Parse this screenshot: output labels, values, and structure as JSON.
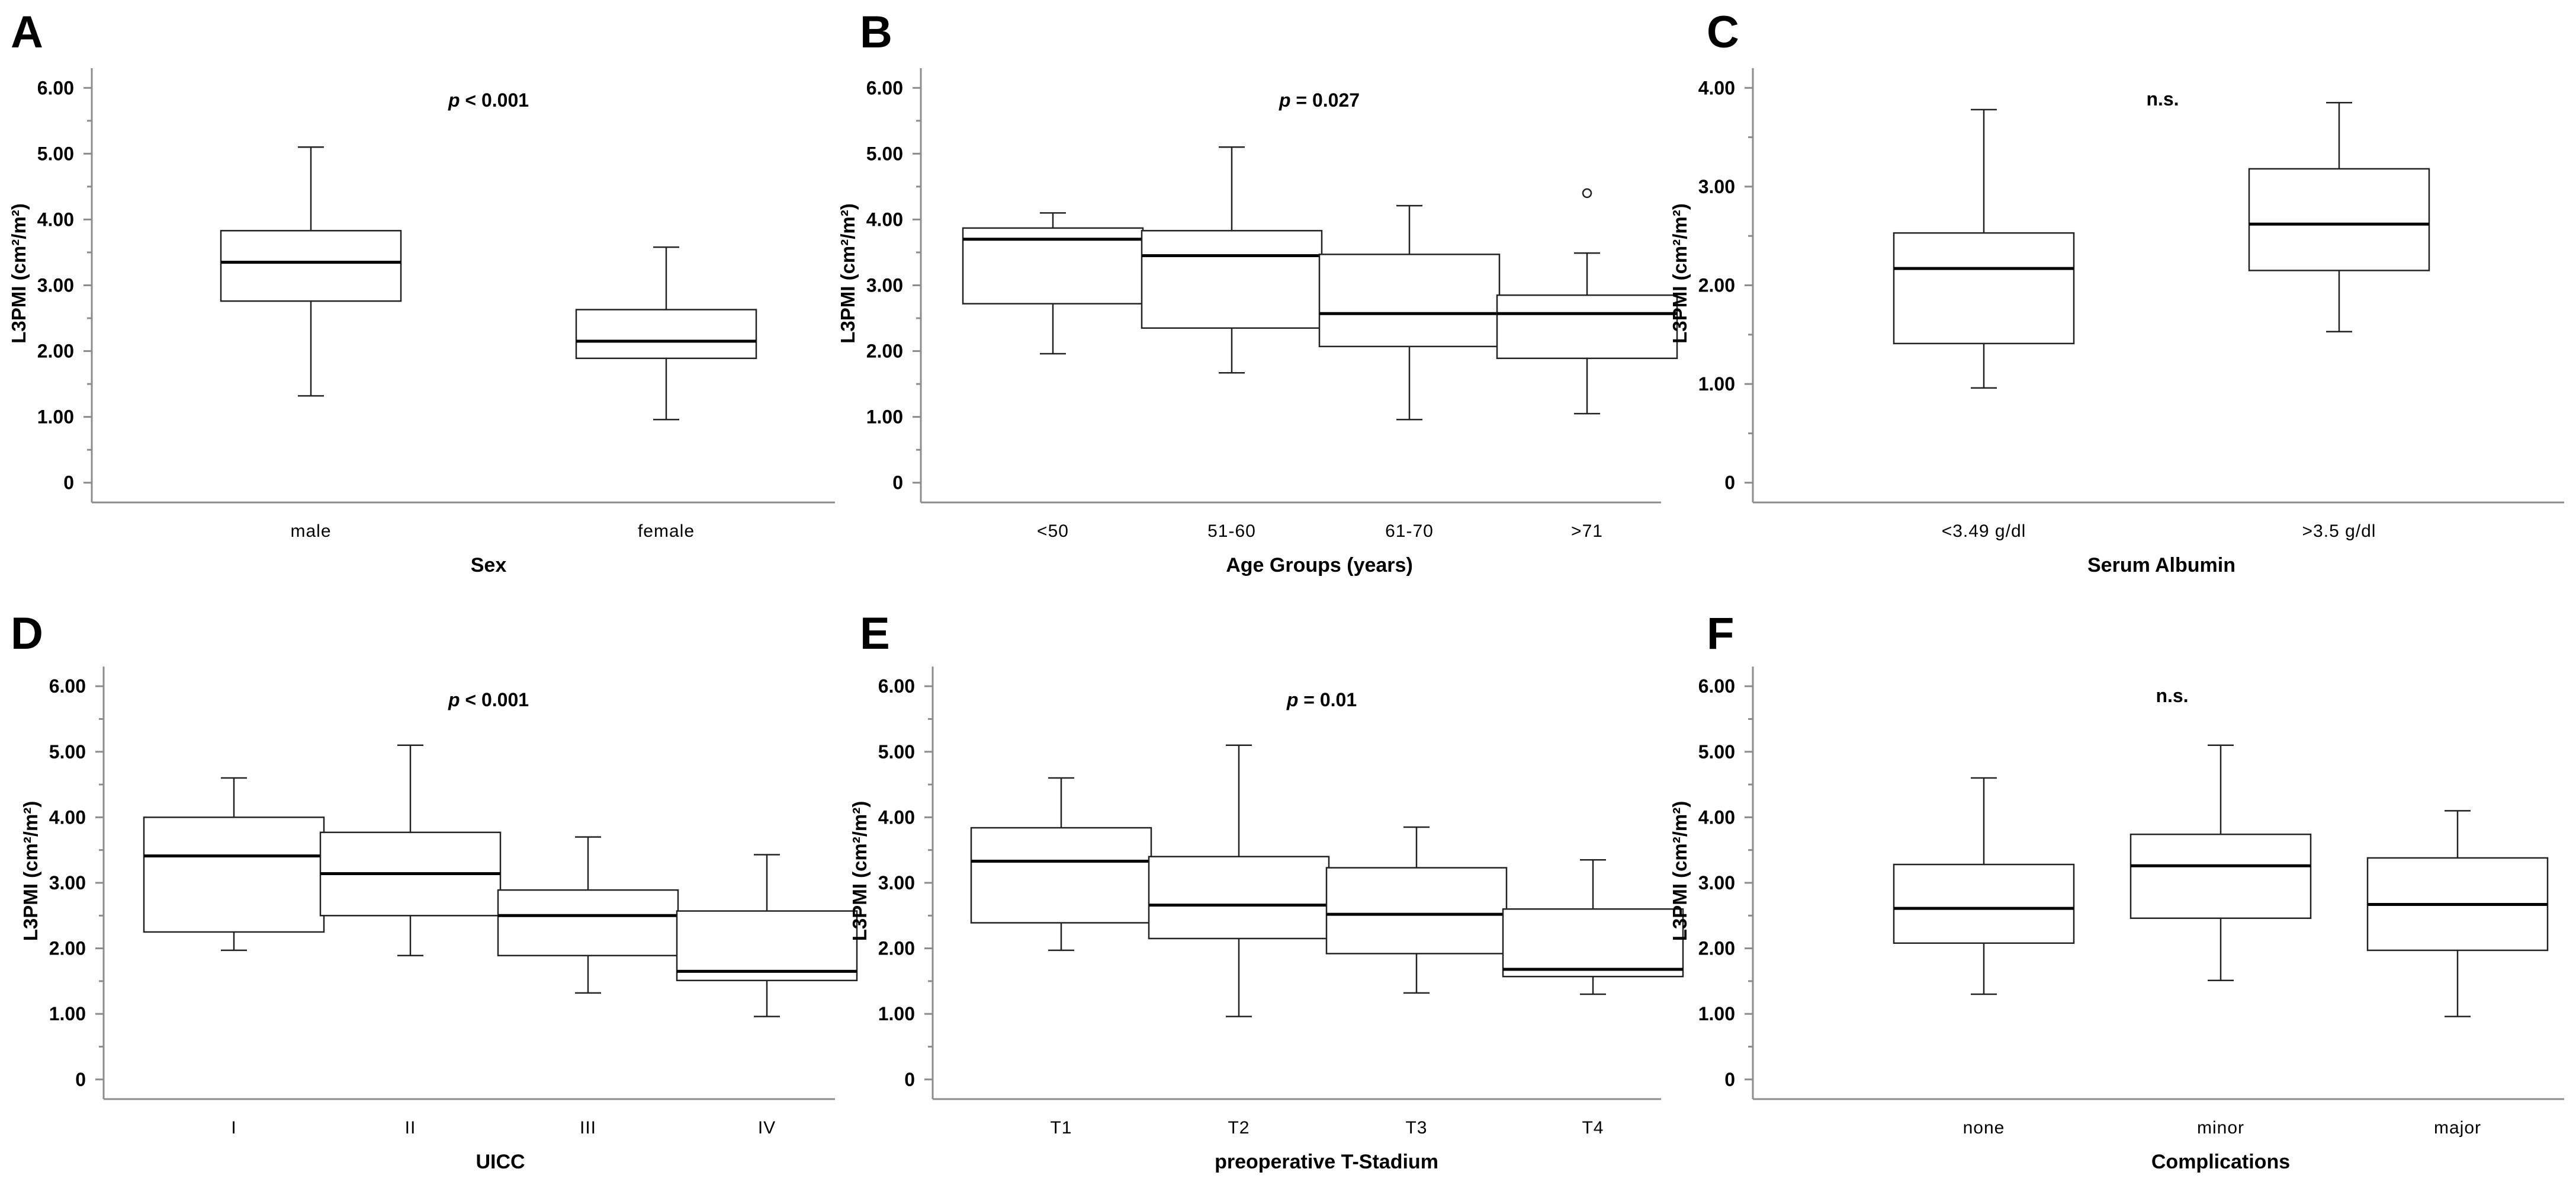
{
  "chart_data": [
    {
      "type": "box",
      "panel": "A",
      "annotation": {
        "prefix": "p",
        "rest": " < 0.001",
        "italic_prefix": true
      },
      "ylabel": "L3PMI (cm²/m²)",
      "xlabel": "Sex",
      "yticks": [
        "0",
        "1.00",
        "2.00",
        "3.00",
        "4.00",
        "5.00",
        "6.00"
      ],
      "ylim": [
        -0.3,
        6.3
      ],
      "categories": [
        "male",
        "female"
      ],
      "boxes": [
        {
          "min": 1.32,
          "q1": 2.76,
          "median": 3.35,
          "q3": 3.83,
          "max": 5.1
        },
        {
          "min": 0.96,
          "q1": 1.89,
          "median": 2.15,
          "q3": 2.63,
          "max": 3.58
        }
      ]
    },
    {
      "type": "box",
      "panel": "B",
      "annotation": {
        "prefix": "p",
        "rest": " = 0.027",
        "italic_prefix": true
      },
      "ylabel": "L3PMI (cm²/m²)",
      "xlabel": "Age Groups (years)",
      "yticks": [
        "0",
        "1.00",
        "2.00",
        "3.00",
        "4.00",
        "5.00",
        "6.00"
      ],
      "ylim": [
        -0.3,
        6.3
      ],
      "categories": [
        "<50",
        "51-60",
        "61-70",
        ">71"
      ],
      "boxes": [
        {
          "min": 1.96,
          "q1": 2.72,
          "median": 3.7,
          "q3": 3.87,
          "max": 4.1
        },
        {
          "min": 1.67,
          "q1": 2.35,
          "median": 3.45,
          "q3": 3.83,
          "max": 5.1
        },
        {
          "min": 0.96,
          "q1": 2.07,
          "median": 2.57,
          "q3": 3.47,
          "max": 4.21
        },
        {
          "min": 1.05,
          "q1": 1.89,
          "median": 2.57,
          "q3": 2.85,
          "max": 3.49,
          "outliers": [
            4.4
          ]
        }
      ]
    },
    {
      "type": "box",
      "panel": "C",
      "annotation": {
        "prefix": "",
        "rest": "n.s.",
        "italic_prefix": false
      },
      "ylabel": "L3PMI (cm²/m²)",
      "xlabel": "Serum Albumin",
      "yticks": [
        "0",
        "1.00",
        "2.00",
        "3.00",
        "4.00"
      ],
      "ylim": [
        -0.2,
        4.2
      ],
      "categories": [
        "<3.49 g/dl",
        ">3.5 g/dl"
      ],
      "boxes": [
        {
          "min": 0.96,
          "q1": 1.41,
          "median": 2.17,
          "q3": 2.53,
          "max": 3.78
        },
        {
          "min": 1.53,
          "q1": 2.15,
          "median": 2.62,
          "q3": 3.18,
          "max": 3.85
        }
      ]
    },
    {
      "type": "box",
      "panel": "D",
      "annotation": {
        "prefix": "p",
        "rest": " < 0.001",
        "italic_prefix": true
      },
      "ylabel": "L3PMI (cm²/m²)",
      "xlabel": "UICC",
      "yticks": [
        "0",
        "1.00",
        "2.00",
        "3.00",
        "4.00",
        "5.00",
        "6.00"
      ],
      "ylim": [
        -0.3,
        6.3
      ],
      "categories": [
        "I",
        "II",
        "III",
        "IV"
      ],
      "boxes": [
        {
          "min": 1.97,
          "q1": 2.25,
          "median": 3.41,
          "q3": 4.0,
          "max": 4.6
        },
        {
          "min": 1.89,
          "q1": 2.5,
          "median": 3.14,
          "q3": 3.77,
          "max": 5.1
        },
        {
          "min": 1.32,
          "q1": 1.89,
          "median": 2.5,
          "q3": 2.89,
          "max": 3.7
        },
        {
          "min": 0.96,
          "q1": 1.51,
          "median": 1.65,
          "q3": 2.57,
          "max": 3.43
        }
      ]
    },
    {
      "type": "box",
      "panel": "E",
      "annotation": {
        "prefix": "p",
        "rest": " = 0.01",
        "italic_prefix": true
      },
      "ylabel": "L3PMI (cm²/m²)",
      "xlabel": "preoperative T-Stadium",
      "yticks": [
        "0",
        "1.00",
        "2.00",
        "3.00",
        "4.00",
        "5.00",
        "6.00"
      ],
      "ylim": [
        -0.3,
        6.3
      ],
      "categories": [
        "T1",
        "T2",
        "T3",
        "T4"
      ],
      "boxes": [
        {
          "min": 1.97,
          "q1": 2.39,
          "median": 3.33,
          "q3": 3.84,
          "max": 4.6
        },
        {
          "min": 0.96,
          "q1": 2.15,
          "median": 2.66,
          "q3": 3.4,
          "max": 5.1
        },
        {
          "min": 1.32,
          "q1": 1.92,
          "median": 2.52,
          "q3": 3.23,
          "max": 3.85
        },
        {
          "min": 1.3,
          "q1": 1.57,
          "median": 1.68,
          "q3": 2.6,
          "max": 3.35
        }
      ]
    },
    {
      "type": "box",
      "panel": "F",
      "annotation": {
        "prefix": "",
        "rest": "n.s.",
        "italic_prefix": false
      },
      "ylabel": "L3PMI (cm²/m²)",
      "xlabel": "Complications",
      "yticks": [
        "0",
        "1.00",
        "2.00",
        "3.00",
        "4.00",
        "5.00",
        "6.00"
      ],
      "ylim": [
        -0.3,
        6.3
      ],
      "categories": [
        "none",
        "minor",
        "major"
      ],
      "boxes": [
        {
          "min": 1.3,
          "q1": 2.08,
          "median": 2.61,
          "q3": 3.28,
          "max": 4.6
        },
        {
          "min": 1.51,
          "q1": 2.46,
          "median": 3.26,
          "q3": 3.74,
          "max": 5.1
        },
        {
          "min": 0.96,
          "q1": 1.97,
          "median": 2.67,
          "q3": 3.38,
          "max": 4.1
        }
      ]
    }
  ]
}
